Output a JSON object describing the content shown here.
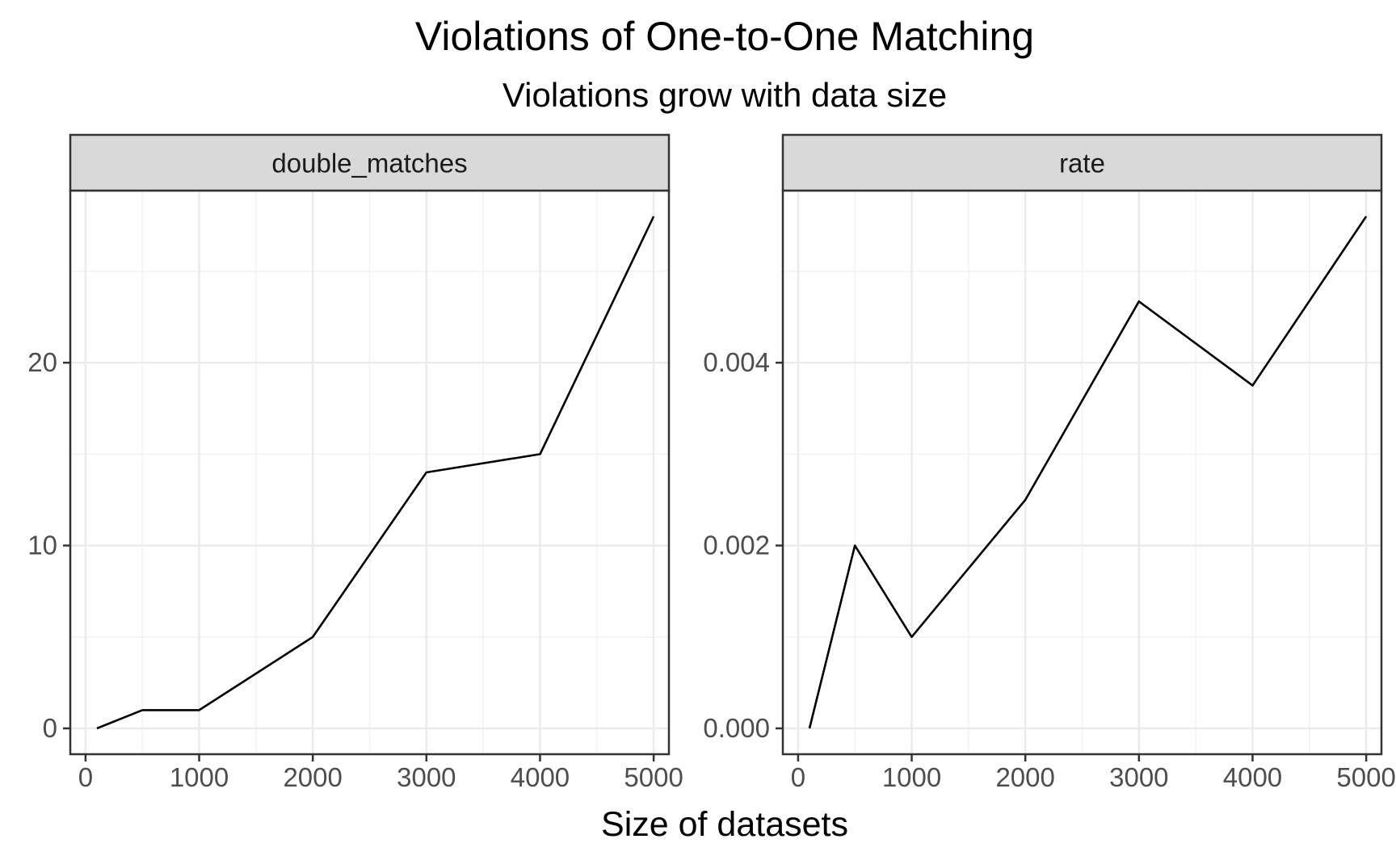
{
  "title": "Violations of One-to-One Matching",
  "subtitle": "Violations grow with data size",
  "xlabel": "Size of datasets",
  "chart_data": [
    {
      "type": "line",
      "panel": "double_matches",
      "x": [
        100,
        500,
        1000,
        2000,
        3000,
        4000,
        5000
      ],
      "values": [
        0,
        1,
        1,
        5,
        14,
        15,
        28
      ],
      "xlim": [
        0,
        5000
      ],
      "ylim": [
        0,
        28
      ],
      "xticks": [
        0,
        1000,
        2000,
        3000,
        4000,
        5000
      ],
      "yticks": [
        0,
        10,
        20
      ],
      "ytick_labels": [
        "0",
        "10",
        "20"
      ],
      "grid": true
    },
    {
      "type": "line",
      "panel": "rate",
      "x": [
        100,
        500,
        1000,
        2000,
        3000,
        4000,
        5000
      ],
      "values": [
        0,
        0.002,
        0.001,
        0.0025,
        0.00467,
        0.00375,
        0.0056
      ],
      "xlim": [
        0,
        5000
      ],
      "ylim": [
        0,
        0.0056
      ],
      "xticks": [
        0,
        1000,
        2000,
        3000,
        4000,
        5000
      ],
      "yticks": [
        0,
        0.002,
        0.004
      ],
      "ytick_labels": [
        "0.000",
        "0.002",
        "0.004"
      ],
      "grid": true
    }
  ]
}
